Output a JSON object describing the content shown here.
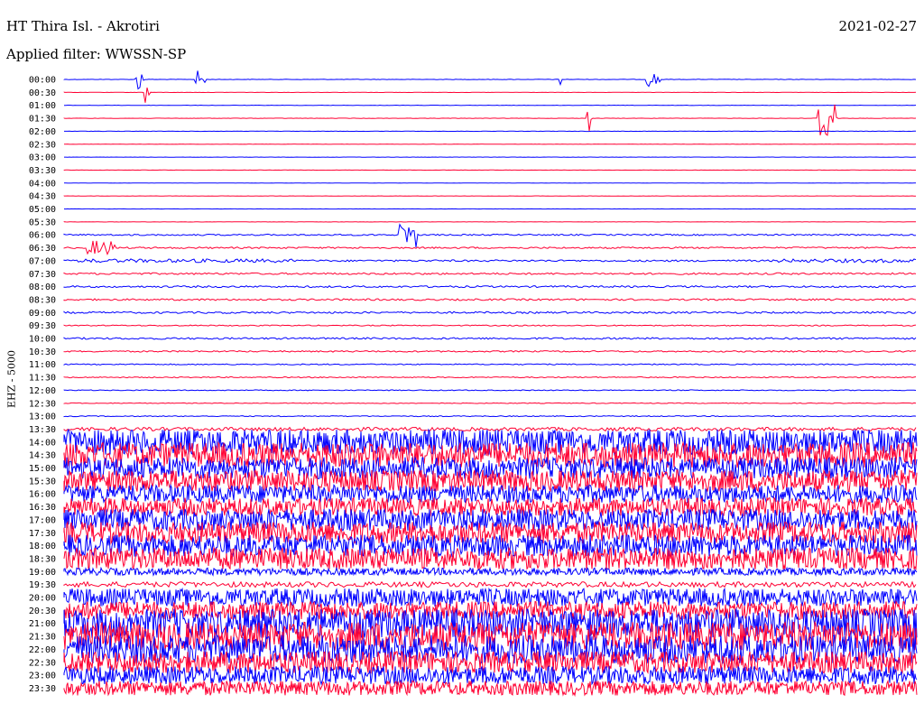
{
  "header": {
    "title": "HT Thira Isl. - Akrotiri",
    "date": "2021-02-27",
    "filter": "Applied filter: WWSSN-SP",
    "channel": "EHZ - 5000"
  },
  "colors": {
    "odd_trace": "#0000ff",
    "even_trace": "#ff0033",
    "text": "#000000"
  },
  "chart_data": {
    "type": "line",
    "title": "HT Thira Isl. - Akrotiri",
    "subtitle": "Applied filter: WWSSN-SP",
    "ylabel": "EHZ - 5000",
    "xlabel": "",
    "grid": false,
    "rows": [
      "00:00",
      "00:30",
      "01:00",
      "01:30",
      "02:00",
      "02:30",
      "03:00",
      "03:30",
      "04:00",
      "04:30",
      "05:00",
      "05:30",
      "06:00",
      "06:30",
      "07:00",
      "07:30",
      "08:00",
      "08:30",
      "09:00",
      "09:30",
      "10:00",
      "10:30",
      "11:00",
      "11:30",
      "12:00",
      "12:30",
      "13:00",
      "13:30",
      "14:00",
      "14:30",
      "15:00",
      "15:30",
      "16:00",
      "16:30",
      "17:00",
      "17:30",
      "18:00",
      "18:30",
      "19:00",
      "19:30",
      "20:00",
      "20:30",
      "21:00",
      "21:30",
      "22:00",
      "22:30",
      "23:00",
      "23:30"
    ],
    "minutes_per_row": 30,
    "row_noise_amplitude": [
      0.2,
      0.2,
      0.2,
      0.2,
      0.2,
      0.2,
      0.15,
      0.15,
      0.15,
      0.15,
      0.15,
      0.15,
      0.8,
      0.9,
      1,
      1,
      1,
      1,
      1,
      0.6,
      1,
      0.8,
      0.6,
      0.6,
      0.5,
      0.4,
      0.5,
      2,
      14,
      14,
      12,
      12,
      10,
      10,
      12,
      12,
      12,
      12,
      4,
      3,
      10,
      10,
      16,
      16,
      16,
      12,
      10,
      8
    ],
    "bursts": [
      {
        "row": 0,
        "start_min": 2.5,
        "end_min": 2.8,
        "amp": 14
      },
      {
        "row": 0,
        "start_min": 4.6,
        "end_min": 5.0,
        "amp": 10
      },
      {
        "row": 0,
        "start_min": 17.4,
        "end_min": 17.5,
        "amp": 10
      },
      {
        "row": 0,
        "start_min": 20.5,
        "end_min": 21.0,
        "amp": 8
      },
      {
        "row": 1,
        "start_min": 2.8,
        "end_min": 3.0,
        "amp": 14
      },
      {
        "row": 3,
        "start_min": 18.4,
        "end_min": 18.6,
        "amp": 16
      },
      {
        "row": 3,
        "start_min": 26.5,
        "end_min": 27.2,
        "amp": 28
      },
      {
        "row": 4,
        "start_min": 31.5,
        "end_min": 31.8,
        "amp": 18
      },
      {
        "row": 12,
        "start_min": 11.8,
        "end_min": 12.4,
        "amp": 14
      },
      {
        "row": 12,
        "start_min": 31.0,
        "end_min": 31.3,
        "amp": 12
      },
      {
        "row": 11,
        "start_min": 36.0,
        "end_min": 36.8,
        "amp": 14
      },
      {
        "row": 13,
        "start_min": 0.8,
        "end_min": 1.8,
        "amp": 8
      },
      {
        "row": 14,
        "start_min": 0.5,
        "end_min": 8.0,
        "amp": 2
      },
      {
        "row": 14,
        "start_min": 25.0,
        "end_min": 30.0,
        "amp": 2
      },
      {
        "row": 14,
        "start_min": 32.0,
        "end_min": 36.0,
        "amp": 3
      }
    ],
    "xlim": [
      0,
      30
    ]
  }
}
